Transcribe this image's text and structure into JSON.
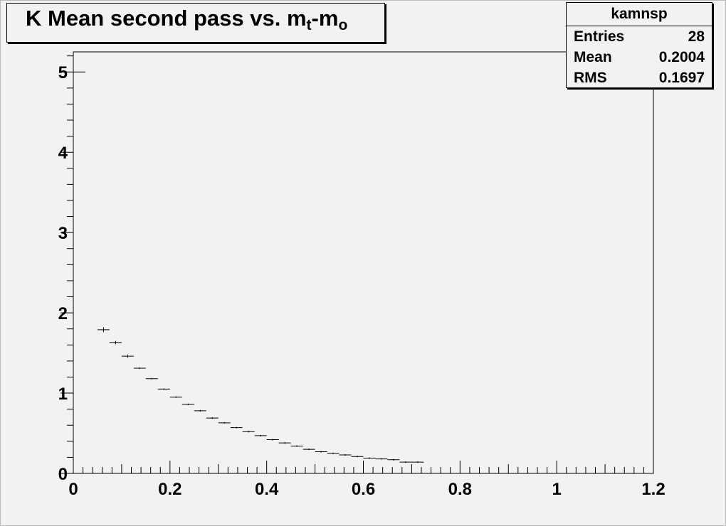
{
  "title": {
    "main": "K Mean second pass vs. m",
    "sub1": "t",
    "dash": "-m",
    "sub2": "o"
  },
  "stats": {
    "name": "kamnsp",
    "rows": [
      {
        "label": "Entries",
        "value": "28"
      },
      {
        "label": "Mean",
        "value": "0.2004"
      },
      {
        "label": "RMS",
        "value": "0.1697"
      }
    ]
  },
  "chart_data": {
    "type": "scatter",
    "title": "K Mean second pass vs. mt-mo",
    "xlabel": "",
    "ylabel": "",
    "xlim": [
      0,
      1.2
    ],
    "ylim": [
      0,
      5.25
    ],
    "x_ticks": [
      "0",
      "0.2",
      "0.4",
      "0.6",
      "0.8",
      "1",
      "1.2"
    ],
    "y_ticks": [
      "0",
      "1",
      "2",
      "3",
      "4",
      "5"
    ],
    "bin_width": 0.025,
    "x": [
      0.0125,
      0.0625,
      0.0875,
      0.1125,
      0.1375,
      0.1625,
      0.1875,
      0.2125,
      0.2375,
      0.2625,
      0.2875,
      0.3125,
      0.3375,
      0.3625,
      0.3875,
      0.4125,
      0.4375,
      0.4625,
      0.4875,
      0.5125,
      0.5375,
      0.5625,
      0.5875,
      0.6125,
      0.6375,
      0.6625,
      0.6875,
      0.7125
    ],
    "y": [
      5.0,
      1.79,
      1.63,
      1.46,
      1.31,
      1.18,
      1.05,
      0.95,
      0.86,
      0.78,
      0.69,
      0.63,
      0.57,
      0.52,
      0.47,
      0.42,
      0.38,
      0.34,
      0.3,
      0.27,
      0.25,
      0.23,
      0.21,
      0.19,
      0.18,
      0.17,
      0.14,
      0.14
    ],
    "yerr": [
      0,
      0.03,
      0.02,
      0.02,
      0.01,
      0.01,
      0.01,
      0.01,
      0.01,
      0.01,
      0.01,
      0.01,
      0.01,
      0.01,
      0.01,
      0.01,
      0.01,
      0.01,
      0.01,
      0.01,
      0.01,
      0.01,
      0.01,
      0.01,
      0.01,
      0.01,
      0.01,
      0.01
    ],
    "grid": false,
    "stats_box": "top-right"
  }
}
